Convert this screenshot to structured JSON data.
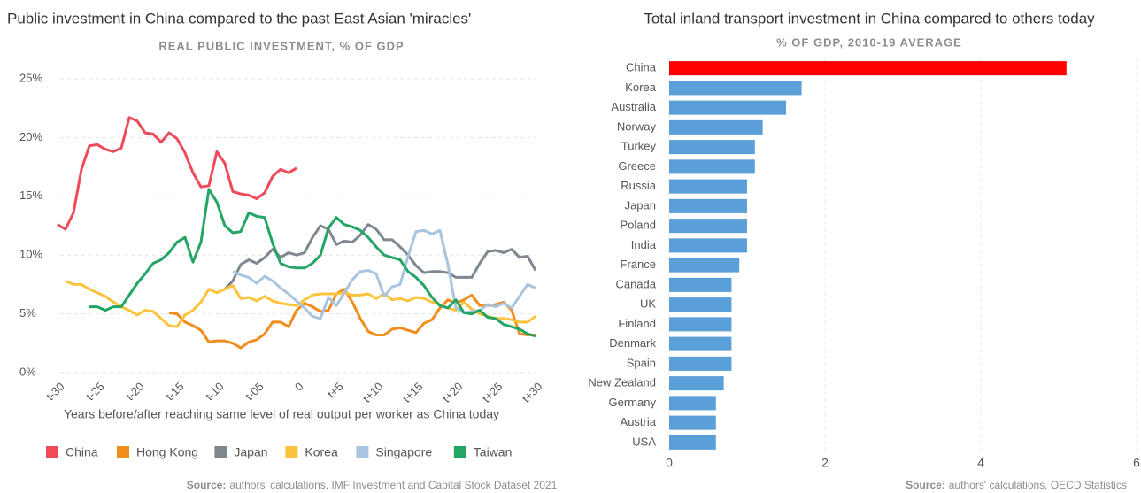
{
  "chart_data": [
    {
      "type": "line",
      "title": "Public investment in China compared to the past East Asian 'miracles'",
      "subtitle": "REAL PUBLIC INVESTMENT, % OF GDP",
      "x_label": "Years before/after reaching same level of real output per worker as China today",
      "source_label": "Source:",
      "source": "authors' calculations, IMF Investment and Capital Stock Dataset 2021",
      "grid": true,
      "legend": "bottom",
      "xlim": [
        -30,
        30
      ],
      "ylim": [
        0,
        25
      ],
      "xticks": [
        {
          "value": -30,
          "label": "t-30"
        },
        {
          "value": -25,
          "label": "t-25"
        },
        {
          "value": -20,
          "label": "t-20"
        },
        {
          "value": -15,
          "label": "t-15"
        },
        {
          "value": -10,
          "label": "t-10"
        },
        {
          "value": -5,
          "label": "t-05"
        },
        0,
        {
          "value": 5,
          "label": "t+5"
        },
        {
          "value": 10,
          "label": "t+10"
        },
        {
          "value": 15,
          "label": "t+15"
        },
        {
          "value": 20,
          "label": "t+20"
        },
        {
          "value": 25,
          "label": "t+25"
        },
        {
          "value": 30,
          "label": "t+30"
        }
      ],
      "yticks": [
        {
          "value": 0,
          "label": "0%"
        },
        {
          "value": 5,
          "label": "5%"
        },
        {
          "value": 10,
          "label": "10%"
        },
        {
          "value": 15,
          "label": "15%"
        },
        {
          "value": 20,
          "label": "20%"
        },
        {
          "value": 25,
          "label": "25%"
        }
      ],
      "x": [
        -30,
        -29,
        -28,
        -27,
        -26,
        -25,
        -24,
        -23,
        -22,
        -21,
        -20,
        -19,
        -18,
        -17,
        -16,
        -15,
        -14,
        -13,
        -12,
        -11,
        -10,
        -9,
        -8,
        -7,
        -6,
        -5,
        -4,
        -3,
        -2,
        -1,
        0,
        1,
        2,
        3,
        4,
        5,
        6,
        7,
        8,
        9,
        10,
        11,
        12,
        13,
        14,
        15,
        16,
        17,
        18,
        19,
        20,
        21,
        22,
        23,
        24,
        25,
        26,
        27,
        28,
        29,
        30
      ],
      "series": [
        {
          "name": "China",
          "color": "#f04a5a",
          "values": [
            12.6,
            12.2,
            13.6,
            17.3,
            19.3,
            19.4,
            19.0,
            18.8,
            19.1,
            21.7,
            21.4,
            20.4,
            20.3,
            19.6,
            20.4,
            19.9,
            18.7,
            17.0,
            15.8,
            15.9,
            18.8,
            17.8,
            15.4,
            15.2,
            15.1,
            14.8,
            15.3,
            16.7,
            17.3,
            17.0,
            17.4,
            null,
            null,
            null,
            null,
            null,
            null,
            null,
            null,
            null,
            null,
            null,
            null,
            null,
            null,
            null,
            null,
            null,
            null,
            null,
            null,
            null,
            null,
            null,
            null,
            null,
            null,
            null,
            null,
            null,
            null
          ]
        },
        {
          "name": "Hong Kong",
          "color": "#f28c1b",
          "values": [
            null,
            null,
            null,
            null,
            null,
            null,
            null,
            null,
            null,
            null,
            null,
            null,
            null,
            null,
            5.1,
            5.0,
            4.3,
            4.0,
            3.6,
            2.6,
            2.7,
            2.7,
            2.5,
            2.1,
            2.6,
            2.8,
            3.3,
            4.3,
            4.3,
            3.9,
            5.3,
            5.9,
            5.6,
            5.2,
            5.3,
            6.7,
            7.1,
            6.0,
            4.6,
            3.5,
            3.2,
            3.2,
            3.7,
            3.8,
            3.6,
            3.4,
            4.2,
            4.5,
            5.5,
            6.2,
            5.9,
            6.2,
            6.6,
            5.7,
            5.7,
            5.8,
            6.0,
            5.3,
            3.3,
            3.2,
            3.2
          ]
        },
        {
          "name": "Japan",
          "color": "#7f8790",
          "values": [
            null,
            null,
            null,
            null,
            null,
            null,
            null,
            null,
            null,
            null,
            null,
            null,
            null,
            null,
            null,
            null,
            null,
            null,
            null,
            null,
            null,
            7.1,
            7.8,
            9.2,
            9.6,
            9.3,
            9.8,
            10.5,
            9.8,
            10.2,
            10.0,
            10.2,
            11.5,
            12.5,
            12.2,
            10.9,
            11.2,
            11.1,
            11.7,
            12.6,
            12.2,
            11.3,
            11.3,
            10.7,
            10.0,
            9.1,
            8.5,
            8.6,
            8.6,
            8.5,
            8.1,
            8.1,
            8.1,
            9.3,
            10.3,
            10.4,
            10.2,
            10.5,
            9.8,
            9.9,
            8.7
          ]
        },
        {
          "name": "Korea",
          "color": "#fcc43d",
          "values": [
            null,
            7.8,
            7.5,
            7.5,
            7.1,
            6.8,
            6.5,
            6.0,
            5.6,
            5.3,
            4.9,
            5.3,
            5.2,
            4.6,
            4.0,
            3.9,
            4.9,
            5.3,
            6.0,
            7.1,
            6.8,
            7.1,
            7.4,
            6.3,
            6.4,
            6.1,
            6.5,
            6.1,
            5.9,
            5.8,
            5.7,
            6.2,
            6.6,
            6.7,
            6.7,
            6.7,
            6.8,
            6.6,
            6.6,
            6.7,
            6.3,
            6.7,
            6.2,
            6.3,
            6.1,
            6.4,
            6.3,
            6.0,
            5.8,
            5.5,
            5.3,
            6.0,
            5.4,
            5.0,
            4.8,
            4.6,
            4.6,
            4.5,
            4.3,
            4.3,
            4.8
          ]
        },
        {
          "name": "Singapore",
          "color": "#a9c4de",
          "values": [
            null,
            null,
            null,
            null,
            null,
            null,
            null,
            null,
            null,
            null,
            null,
            null,
            null,
            null,
            null,
            null,
            null,
            null,
            null,
            null,
            null,
            null,
            8.6,
            8.3,
            8.1,
            7.6,
            8.2,
            7.8,
            7.2,
            6.7,
            6.1,
            5.5,
            4.8,
            4.6,
            6.4,
            5.7,
            6.8,
            7.9,
            8.6,
            8.7,
            8.4,
            6.5,
            7.3,
            7.5,
            9.9,
            12.0,
            12.1,
            11.8,
            12.1,
            9.2,
            5.5,
            5.1,
            5.2,
            5.3,
            5.8,
            5.6,
            5.9,
            5.5,
            6.5,
            7.5,
            7.2
          ]
        },
        {
          "name": "Taiwan",
          "color": "#23a565",
          "values": [
            null,
            null,
            null,
            null,
            5.6,
            5.6,
            5.3,
            5.6,
            5.6,
            6.6,
            7.6,
            8.4,
            9.3,
            9.6,
            10.2,
            11.1,
            11.5,
            9.4,
            11.1,
            15.6,
            14.5,
            12.5,
            11.9,
            12.0,
            13.6,
            13.3,
            13.2,
            11.0,
            9.3,
            9.0,
            8.9,
            8.9,
            9.3,
            10.0,
            12.3,
            13.2,
            12.6,
            12.4,
            12.1,
            11.5,
            10.7,
            10.0,
            9.8,
            9.6,
            8.6,
            8.1,
            7.4,
            6.4,
            5.7,
            5.5,
            6.2,
            5.1,
            5.0,
            5.3,
            4.7,
            4.6,
            4.1,
            3.9,
            3.7,
            3.3,
            3.1
          ]
        }
      ]
    },
    {
      "type": "hbar",
      "title": "Total inland transport investment in China compared to others today",
      "subtitle": "% OF GDP, 2010-19 AVERAGE",
      "source_label": "Source:",
      "source": "authors' calculations, OECD Statistics",
      "grid": true,
      "xlim": [
        0,
        6
      ],
      "xticks": [
        0,
        2,
        4,
        6
      ],
      "categories": [
        "China",
        "Korea",
        "Australia",
        "Norway",
        "Turkey",
        "Greece",
        "Russia",
        "Japan",
        "Poland",
        "India",
        "France",
        "Canada",
        "UK",
        "Finland",
        "Denmark",
        "Spain",
        "New Zealand",
        "Germany",
        "Austria",
        "USA"
      ],
      "values": [
        5.1,
        1.7,
        1.5,
        1.2,
        1.1,
        1.1,
        1.0,
        1.0,
        1.0,
        1.0,
        0.9,
        0.8,
        0.8,
        0.8,
        0.8,
        0.8,
        0.7,
        0.6,
        0.6,
        0.6
      ],
      "colors": [
        "#ff0000",
        "#5a9fd8",
        "#5a9fd8",
        "#5a9fd8",
        "#5a9fd8",
        "#5a9fd8",
        "#5a9fd8",
        "#5a9fd8",
        "#5a9fd8",
        "#5a9fd8",
        "#5a9fd8",
        "#5a9fd8",
        "#5a9fd8",
        "#5a9fd8",
        "#5a9fd8",
        "#5a9fd8",
        "#5a9fd8",
        "#5a9fd8",
        "#5a9fd8",
        "#5a9fd8"
      ]
    }
  ]
}
